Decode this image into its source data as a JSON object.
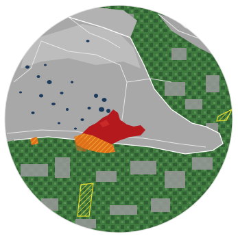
{
  "map": {
    "kind": "circular land-cover map view",
    "labels": [],
    "colors": {
      "background": "#ffffff",
      "cleared_land": "#a8a8a8",
      "cleared_land_light": "#bdbdbd",
      "forest_dark": "#2f5f33",
      "forest_mid": "#3f7a3f",
      "forest_light": "#5a8f55",
      "water_ponds": "#1c3a5c",
      "urban_core": "#b3191d",
      "urban_fringe": "#e0701c",
      "hatch_yellow": "#e8e030",
      "roads": "#e8e8e8",
      "boundary_outline": "#ffffff"
    },
    "legend_classes": [
      "forest",
      "cleared-land",
      "water-ponds",
      "urban-area",
      "urban-expansion",
      "hatched-zones"
    ]
  }
}
